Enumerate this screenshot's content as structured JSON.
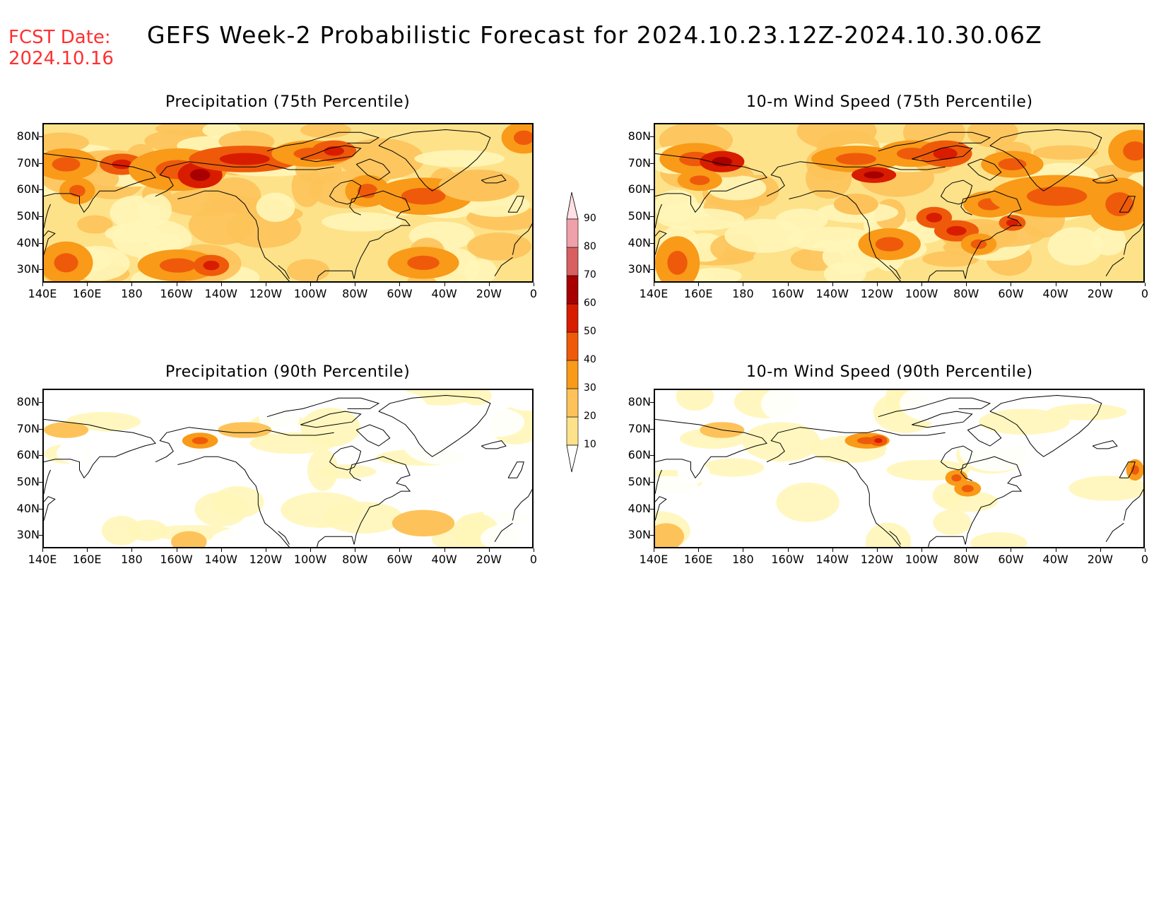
{
  "header": {
    "fcst_label": "FCST Date:",
    "fcst_date": "2024.10.16",
    "title": "GEFS Week-2 Probabilistic Forecast for 2024.10.23.12Z-2024.10.30.06Z"
  },
  "panels": [
    {
      "id": "precip75",
      "title": "Precipitation (75th Percentile)",
      "intensity": 2
    },
    {
      "id": "wind75",
      "title": "10-m Wind Speed (75th Percentile)",
      "intensity": 2
    },
    {
      "id": "precip90",
      "title": "Precipitation (90th Percentile)",
      "intensity": 0
    },
    {
      "id": "wind90",
      "title": "10-m Wind Speed (90th Percentile)",
      "intensity": 0
    }
  ],
  "axes": {
    "lat_labels": [
      "80N",
      "70N",
      "60N",
      "50N",
      "40N",
      "30N"
    ],
    "lat_values": [
      80,
      70,
      60,
      50,
      40,
      30
    ],
    "lat_range": [
      25,
      85
    ],
    "lon_labels": [
      "140E",
      "160E",
      "180",
      "160W",
      "140W",
      "120W",
      "100W",
      "80W",
      "60W",
      "40W",
      "20W",
      "0"
    ],
    "lon_values": [
      140,
      160,
      180,
      200,
      220,
      240,
      260,
      280,
      300,
      320,
      340,
      360
    ],
    "lon_range": [
      140,
      360
    ]
  },
  "colorbar": {
    "labels": [
      "10",
      "20",
      "30",
      "40",
      "50",
      "60",
      "70",
      "80",
      "90"
    ],
    "levels": [
      10,
      20,
      30,
      40,
      50,
      60,
      70,
      80,
      90
    ],
    "colors": [
      "#fff6b8",
      "#fde28a",
      "#fdc35a",
      "#f99a18",
      "#ee5a0a",
      "#d81c00",
      "#a80000",
      "#d86060",
      "#f0a0a8",
      "#ffe0e4"
    ]
  }
}
